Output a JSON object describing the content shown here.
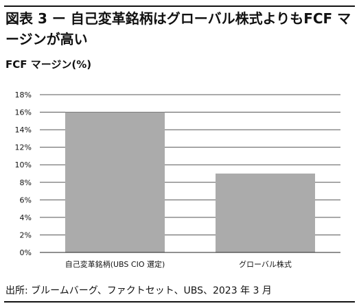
{
  "title": "図表 3 ー 自己変革銘柄はグローバル株式よりもFCF マージンが高い",
  "source": "出所: ブルームバーグ、ファクトセット、UBS、2023 年 3 月",
  "chart_data": {
    "type": "bar",
    "ylabel": "FCF マージン(%)",
    "categories": [
      "自己変革銘柄(UBS CIO 選定)",
      "グローバル株式"
    ],
    "values": [
      16,
      9
    ],
    "ylim": [
      0,
      18
    ],
    "yticks": [
      0,
      2,
      4,
      6,
      8,
      10,
      12,
      14,
      16,
      18
    ],
    "ytick_labels": [
      "0%",
      "2%",
      "4%",
      "6%",
      "8%",
      "10%",
      "12%",
      "14%",
      "16%",
      "18%"
    ],
    "grid": true,
    "bar_color": "#ababab",
    "grid_color": "#555555"
  }
}
